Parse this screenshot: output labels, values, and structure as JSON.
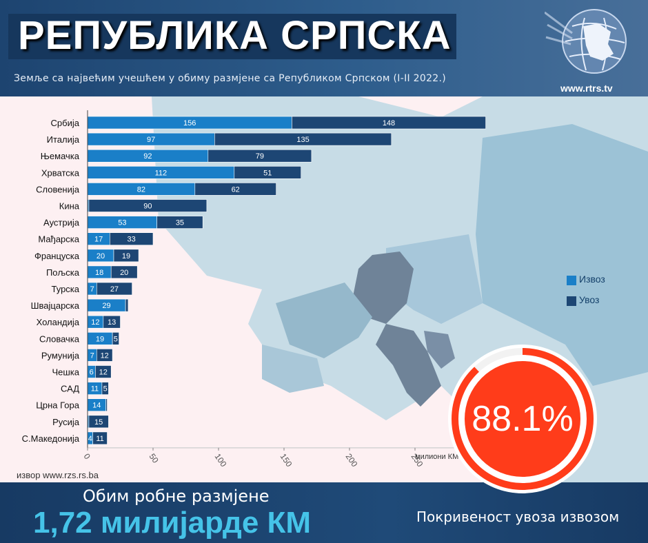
{
  "header": {
    "title": "РЕПУБЛИКА СРПСКА",
    "subtitle": "Земље са највећим учешћем у обиму размјене са Републиком Српском (I-II 2022.)",
    "site": "www.rtrs.tv"
  },
  "chart_data": {
    "type": "bar",
    "orientation": "horizontal",
    "stacked": true,
    "categories": [
      "Србија",
      "Италија",
      "Њемачка",
      "Хрватска",
      "Словенија",
      "Кина",
      "Аустрија",
      "Мађарска",
      "Француска",
      "Пољска",
      "Турска",
      "Швајцарска",
      "Холандија",
      "Словачка",
      "Румунија",
      "Чешка",
      "САД",
      "Црна Гора",
      "Русија",
      "С.Македонија"
    ],
    "series": [
      {
        "name": "Извоз",
        "color": "#1a7fc8",
        "values": [
          156,
          97,
          92,
          112,
          82,
          1,
          53,
          17,
          20,
          18,
          7,
          29,
          12,
          19,
          7,
          6,
          11,
          14,
          1,
          4
        ],
        "labels": [
          "156",
          "97",
          "92",
          "112",
          "82",
          "",
          "53",
          "17",
          "20",
          "18",
          "7",
          "29",
          "12",
          "19",
          "7",
          "6",
          "11",
          "14",
          "",
          "4"
        ]
      },
      {
        "name": "Увоз",
        "color": "#1d4674",
        "values": [
          148,
          135,
          79,
          51,
          62,
          90,
          35,
          33,
          19,
          20,
          27,
          2,
          13,
          5,
          12,
          12,
          5,
          1,
          15,
          11
        ],
        "labels": [
          "148",
          "135",
          "79",
          "51",
          "62",
          "90",
          "35",
          "33",
          "19",
          "20",
          "27",
          "",
          "13",
          "5",
          "12",
          "12",
          "5",
          "",
          "15",
          "11"
        ]
      }
    ],
    "xlim": [
      0,
      300
    ],
    "xticks": [
      "0",
      "50",
      "100",
      "150",
      "200",
      "250"
    ],
    "xtick_values": [
      0,
      50,
      100,
      150,
      200,
      250
    ],
    "xlabel": "милиони КМ",
    "legend_position": "right",
    "grid": false
  },
  "source": "извор www.rzs.rs.ba",
  "footer": {
    "label": "Обим робне размјене",
    "value": "1,72 милијарде КМ",
    "coverage_label": "Покривеност увоза извозом"
  },
  "gauge": {
    "value_text": "88.1%",
    "fraction": 0.881,
    "color": "#ff3c1a"
  }
}
